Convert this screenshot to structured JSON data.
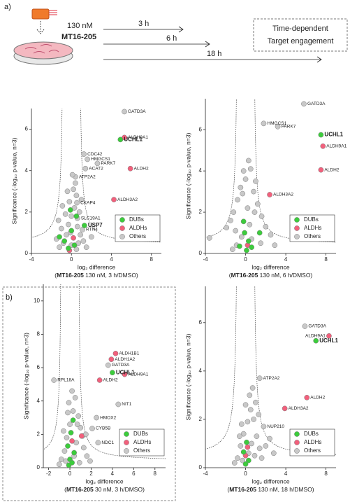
{
  "scheme": {
    "label": "a)",
    "concentration": "130 nM",
    "compound": "MT16-205",
    "times": [
      "3 h",
      "6 h",
      "18 h"
    ],
    "box": [
      "Time-dependent",
      "Target engagement"
    ]
  },
  "panel_b_label": "b)",
  "chart_data": [
    {
      "type": "scatter",
      "y_label": "Significance (-log₁₀ p-value, n=3)",
      "x_label": "log₂ difference",
      "caption": [
        "(",
        "MT16-205",
        " 130 nM, 3 h/DMSO)"
      ],
      "xlim": [
        -4,
        9
      ],
      "ylim": [
        0,
        7
      ],
      "xticks": [
        -4,
        0,
        4,
        8
      ],
      "yticks": [
        0,
        2,
        4,
        6
      ],
      "legend": "lower right",
      "series": [
        {
          "name": "Others",
          "color": "#c8c8c8",
          "label_color": "#444444",
          "label_weight": "normal",
          "x": [
            5.3,
            1.25,
            1.6,
            2.6,
            1.4,
            0.4,
            0.55,
            0.6,
            1.1,
            -1.2,
            -0.8,
            -0.5,
            -0.3,
            0,
            0.3,
            0.5,
            0.2,
            -0.2,
            -0.6,
            -1.0,
            -1.5,
            0.6,
            0.9,
            1.2,
            0.8,
            0.4,
            -0.4,
            0,
            0.5,
            -0.9,
            1.0,
            0.1,
            -0.1,
            0.7,
            -1.3,
            1.5,
            2.0
          ],
          "values": [
            6.85,
            4.8,
            4.55,
            4.35,
            4.1,
            3.7,
            2.45,
            1.7,
            1.15,
            0.3,
            0.5,
            0.9,
            1.4,
            1.8,
            2.2,
            2.8,
            3.1,
            2.5,
            1.9,
            1.2,
            0.7,
            1.3,
            0.9,
            0.6,
            2.0,
            3.4,
            3.0,
            0.4,
            0.2,
            2.3,
            2.6,
            3.8,
            1.0,
            0.5,
            1.6,
            0.3,
            0.8
          ],
          "labels": [
            "GATD3A",
            "CDC42",
            "HMGCS1",
            "PARK7",
            "ACAT2",
            "ATP2A2",
            "CKAP4",
            "SLC19A1",
            "RTN4",
            null,
            null,
            null,
            null,
            null,
            null,
            null,
            null,
            null,
            null,
            null,
            null,
            null,
            null,
            null,
            null,
            null,
            null,
            null,
            null,
            null,
            null,
            null,
            null,
            null,
            null,
            null,
            null
          ]
        },
        {
          "name": "ALDHs",
          "color": "#f2607c",
          "label_color": "#444444",
          "label_weight": "normal",
          "x": [
            5.3,
            5.9,
            4.25,
            0.2,
            -0.2
          ],
          "values": [
            5.6,
            4.1,
            2.6,
            0.75,
            0.15
          ],
          "labels": [
            "ALDH9A1",
            "ALDH2",
            "ALDH3A2",
            null,
            null
          ]
        },
        {
          "name": "DUBs",
          "color": "#3ccc3c",
          "label_color": "#22b022",
          "label_weight": "bold",
          "x": [
            4.9,
            1.3,
            0,
            -0.7,
            -0.3,
            -1.2,
            0.5,
            -0.1,
            0.3
          ],
          "values": [
            5.5,
            1.35,
            1.1,
            0.6,
            0.25,
            0.8,
            1.8,
            2.1,
            0.4
          ],
          "labels": [
            "UCHL1",
            "USP7",
            null,
            null,
            null,
            null,
            null,
            null,
            null
          ]
        }
      ]
    },
    {
      "type": "scatter",
      "y_label": "Significance (-log₁₀ p-value, n=3)",
      "x_label": "log₂ difference",
      "caption": [
        "(",
        "MT16-205",
        " 130 nM, 6 h/DMSO)"
      ],
      "xlim": [
        -4,
        9
      ],
      "ylim": [
        0,
        7.5
      ],
      "xticks": [
        -4,
        0,
        4,
        8
      ],
      "yticks": [
        0,
        2,
        4,
        6
      ],
      "legend": "lower right",
      "series": [
        {
          "name": "Others",
          "color": "#c8c8c8",
          "label_color": "#444444",
          "label_weight": "normal",
          "x": [
            5.8,
            1.8,
            3.2,
            -1.9,
            -3.6,
            -1.2,
            -0.8,
            -0.5,
            0,
            0.5,
            0.8,
            1.2,
            1.6,
            2.0,
            2.5,
            -1.5,
            -1.0,
            -0.4,
            0.4,
            0.9,
            0.2,
            -0.3,
            1.0,
            0.6,
            1.5,
            -0.9,
            -1.3,
            2.9,
            0.3,
            -0.2
          ],
          "values": [
            7.25,
            6.3,
            6.15,
            1.25,
            0.75,
            2.0,
            2.6,
            3.2,
            3.6,
            4.1,
            3.0,
            2.4,
            1.8,
            1.3,
            0.9,
            1.6,
            1.1,
            0.8,
            1.4,
            2.0,
            2.2,
            2.9,
            3.5,
            0.7,
            0.5,
            0.4,
            0.2,
            0.4,
            4.5,
            4.0
          ],
          "labels": [
            "GATD3A",
            "HMGCS1",
            "PARK7",
            null,
            null,
            null,
            null,
            null,
            null,
            null,
            null,
            null,
            null,
            null,
            null,
            null,
            null,
            null,
            null,
            null,
            null,
            null,
            null,
            null,
            null,
            null,
            null,
            null,
            null,
            null
          ]
        },
        {
          "name": "ALDHs",
          "color": "#f2607c",
          "label_color": "#444444",
          "label_weight": "normal",
          "x": [
            7.7,
            7.5,
            2.4,
            0.2
          ],
          "values": [
            5.2,
            4.05,
            2.85,
            0.4
          ],
          "labels": [
            "ALDH9A1",
            "ALDH2",
            "ALDH3A2",
            null
          ]
        },
        {
          "name": "DUBs",
          "color": "#3ccc3c",
          "label_color": "#22b022",
          "label_weight": "bold",
          "x": [
            7.5,
            -0.2,
            1.4,
            -0.1,
            0.3,
            -0.6,
            0.1,
            0.6
          ],
          "values": [
            5.75,
            1.55,
            1.0,
            1.0,
            0.6,
            0.35,
            0.15,
            0.3
          ],
          "labels": [
            "UCHL1",
            null,
            null,
            null,
            null,
            null,
            null,
            null
          ]
        }
      ]
    },
    {
      "type": "scatter",
      "y_label": "Significance (-log₁₀ p-value, n=3)",
      "x_label": "log₂ difference",
      "caption": [
        "(",
        "MT16-205",
        " 30 nM, 3 h/DMSO)"
      ],
      "xlim": [
        -2.5,
        9
      ],
      "ylim": [
        0,
        11
      ],
      "xticks": [
        -2,
        0,
        2,
        4,
        6,
        8
      ],
      "yticks": [
        0,
        2,
        4,
        6,
        8,
        10
      ],
      "legend": "lower right",
      "series": [
        {
          "name": "Others",
          "color": "#c8c8c8",
          "label_color": "#444444",
          "label_weight": "normal",
          "x": [
            3.6,
            -1.5,
            4.55,
            2.5,
            2.1,
            2.65,
            -0.8,
            -0.5,
            -0.3,
            0,
            0.3,
            0.5,
            0.8,
            1.0,
            1.3,
            1.6,
            0.6,
            -0.6,
            -0.2,
            0.2,
            0.9,
            -1.0,
            1.9,
            0.4,
            -0.4,
            1.2,
            0.7,
            -0.1,
            1.5
          ],
          "values": [
            6.15,
            5.25,
            3.8,
            3.0,
            2.35,
            1.5,
            0.5,
            1.0,
            1.8,
            2.6,
            3.4,
            4.2,
            3.1,
            2.4,
            1.2,
            0.7,
            1.5,
            2.2,
            3.3,
            4.6,
            0.3,
            0.2,
            0.4,
            0.7,
            0.4,
            1.9,
            2.6,
            3.9,
            2.0
          ],
          "labels": [
            "GATD3A",
            "RPL18A",
            "NIT1",
            "HMOX2",
            "CYB5B",
            "NDC1",
            null,
            null,
            null,
            null,
            null,
            null,
            null,
            null,
            null,
            null,
            null,
            null,
            null,
            null,
            null,
            null,
            null,
            null,
            null,
            null,
            null,
            null,
            null
          ]
        },
        {
          "name": "ALDHs",
          "color": "#f2607c",
          "label_color": "#444444",
          "label_weight": "normal",
          "x": [
            4.3,
            3.9,
            5.15,
            2.8,
            1.1,
            0.2
          ],
          "values": [
            6.85,
            6.5,
            5.6,
            5.25,
            1.9,
            1.6
          ],
          "labels": [
            "ALDH1B1",
            "ALDH1A2",
            "ALDH9A1",
            "ALDH2",
            null,
            null
          ]
        },
        {
          "name": "DUBs",
          "color": "#3ccc3c",
          "label_color": "#22b022",
          "label_weight": "bold",
          "x": [
            4.0,
            0.3,
            0.1,
            -0.2,
            0.4,
            0,
            -0.1,
            0.2
          ],
          "values": [
            5.7,
            2.85,
            2.1,
            1.3,
            0.9,
            0.5,
            0.15,
            0.3
          ],
          "labels": [
            "UCHL1",
            null,
            null,
            null,
            null,
            null,
            null,
            null
          ]
        }
      ]
    },
    {
      "type": "scatter",
      "y_label": "Significance (-log₁₀ p-value, n=3)",
      "x_label": "log₂ difference",
      "caption": [
        "(",
        "MT16-205",
        " 130 nM, 18 h/DMSO)"
      ],
      "xlim": [
        -4,
        9
      ],
      "ylim": [
        0,
        7.5
      ],
      "xticks": [
        -4,
        0,
        4,
        8
      ],
      "yticks": [
        0,
        2,
        4,
        6
      ],
      "legend": "lower right",
      "series": [
        {
          "name": "Others",
          "color": "#c8c8c8",
          "label_color": "#444444",
          "label_weight": "normal",
          "x": [
            5.9,
            1.4,
            1.8,
            -0.8,
            -0.5,
            -0.2,
            0.2,
            0.5,
            0.8,
            1.1,
            1.4,
            0.6,
            -0.4,
            0,
            0.4,
            1.0,
            1.6,
            -1.1,
            0.3,
            -0.3,
            0.9,
            2.0,
            2.4,
            1.3,
            0.7,
            -0.6,
            2.8
          ],
          "values": [
            5.85,
            3.7,
            1.7,
            0.4,
            0.9,
            1.4,
            1.9,
            2.4,
            2.0,
            1.3,
            0.8,
            1.0,
            1.8,
            2.6,
            3.0,
            2.7,
            0.4,
            0.2,
            0.6,
            0.3,
            0.5,
            0.9,
            1.2,
            2.2,
            3.3,
            1.3,
            0.6
          ],
          "labels": [
            "GATD3A",
            "ATP2A2",
            "NUP210",
            null,
            null,
            null,
            null,
            null,
            null,
            null,
            null,
            null,
            null,
            null,
            null,
            null,
            null,
            null,
            null,
            null,
            null,
            null,
            null,
            null,
            null,
            null,
            null
          ]
        },
        {
          "name": "ALDHs",
          "color": "#f2607c",
          "label_color": "#444444",
          "label_weight": "normal",
          "x": [
            8.3,
            6.1,
            3.9,
            0,
            0.2
          ],
          "values": [
            5.45,
            2.9,
            2.45,
            0.5,
            0.85
          ],
          "labels": [
            "ALDH9A1",
            "ALDH2",
            "ALDH3A2",
            null,
            null
          ]
        },
        {
          "name": "DUBs",
          "color": "#3ccc3c",
          "label_color": "#22b022",
          "label_weight": "bold",
          "x": [
            7.0,
            0.1,
            -0.2,
            0.3,
            0
          ],
          "values": [
            5.25,
            1.05,
            0.65,
            0.3,
            0.15
          ],
          "labels": [
            "UCHL1",
            null,
            null,
            null,
            null
          ]
        }
      ]
    }
  ]
}
